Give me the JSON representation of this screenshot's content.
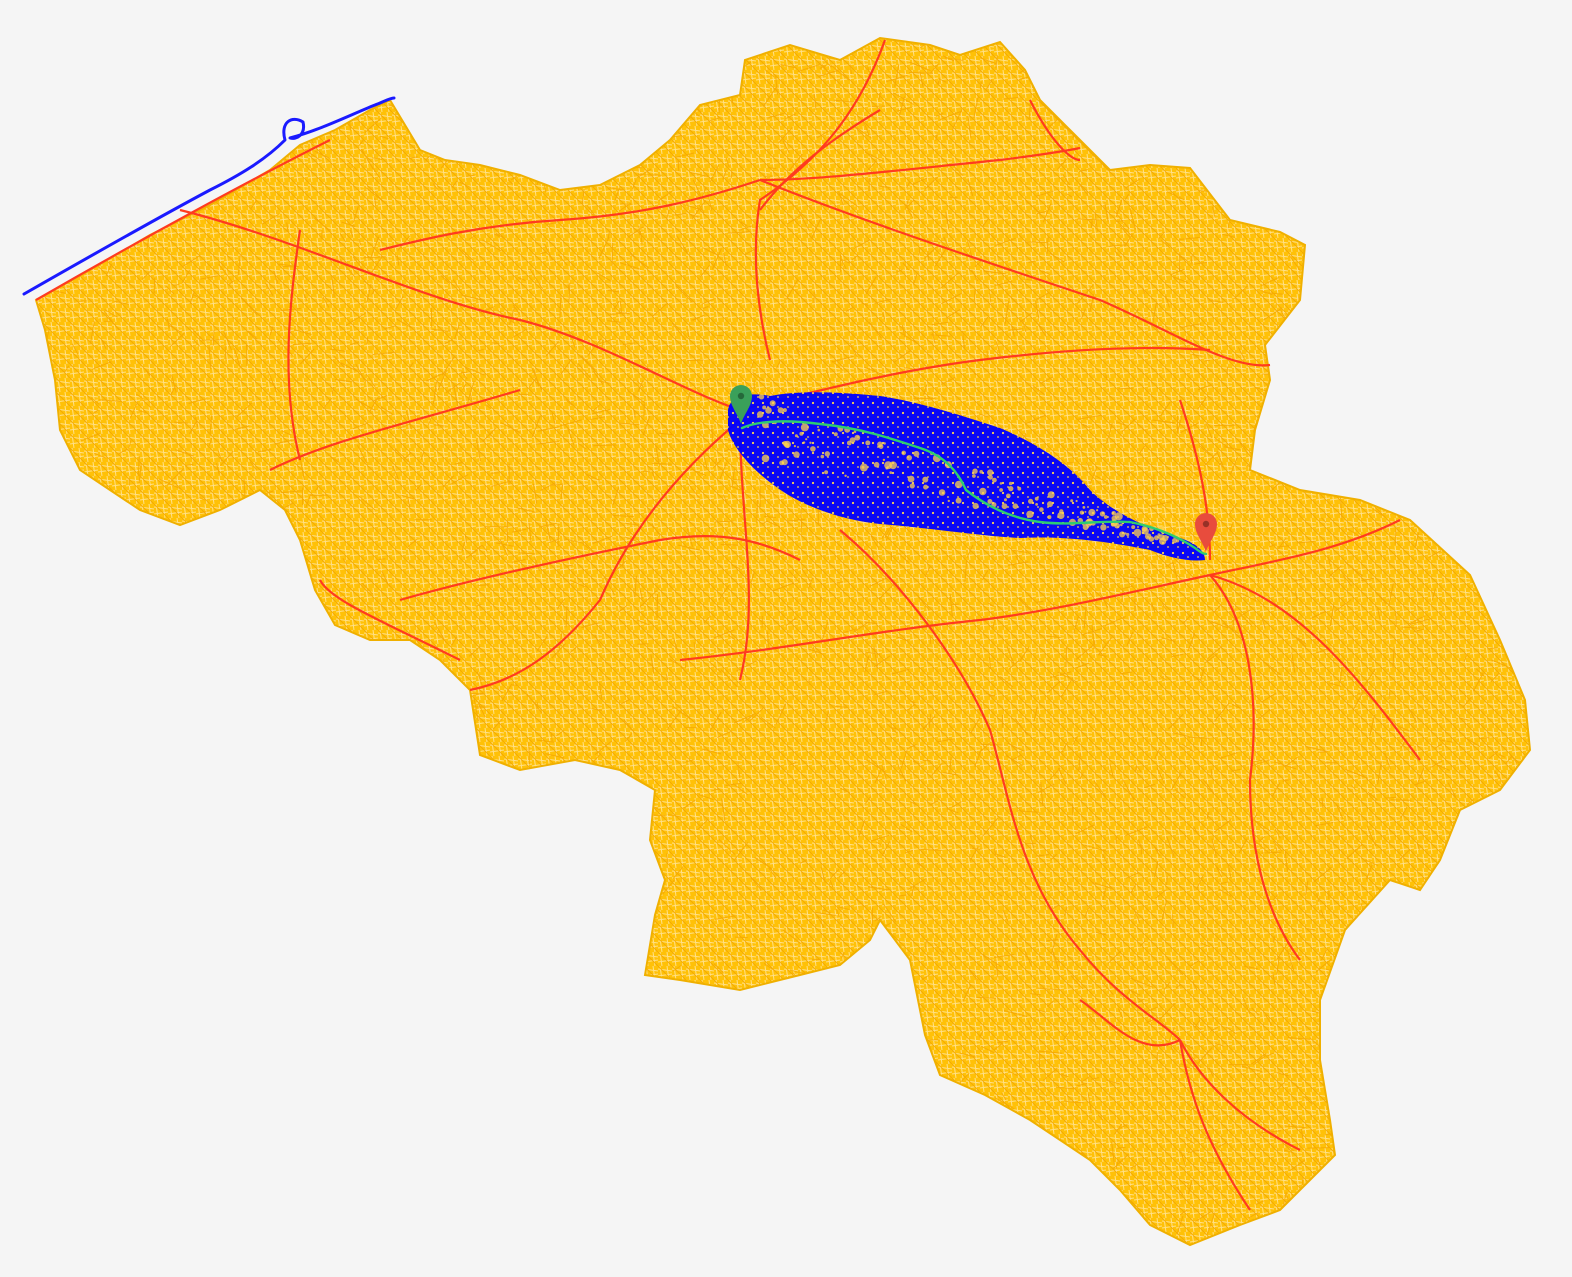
{
  "map": {
    "background_color": "#f5f5f5",
    "country_fill_color": "#ffc107",
    "country_texture_color": "#ffe08a",
    "minor_road_color": "#f6a800",
    "major_road_color": "#ff3b1f",
    "coastline_color": "#1a1aff",
    "search_area_color": "#0000ff",
    "search_area_texture_color": "#ffd34d",
    "route_color": "#2ecc71"
  },
  "markers": {
    "start": {
      "icon": "map-pin-icon",
      "color": "#3aa05a"
    },
    "end": {
      "icon": "map-pin-icon",
      "color": "#e84c3d"
    }
  }
}
